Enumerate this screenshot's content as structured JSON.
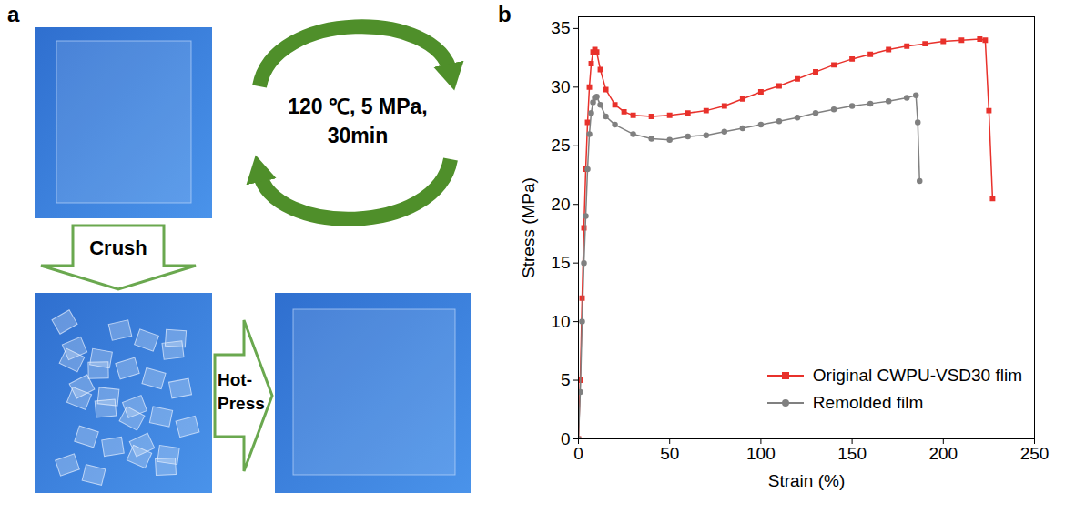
{
  "diagram": {
    "panel_labels": [
      "a",
      "b"
    ],
    "cycle_text": [
      "120 ℃, 5 MPa,",
      "30min"
    ],
    "steps": [
      "Crush",
      "Hot-Press"
    ]
  },
  "chart_data": {
    "type": "line",
    "xlabel": "Strain (%)",
    "ylabel": "Stress (MPa)",
    "xlim": [
      0,
      250
    ],
    "xticks": [
      0,
      50,
      100,
      150,
      200,
      250
    ],
    "ylim": [
      0,
      36
    ],
    "yticks": [
      0,
      5,
      10,
      15,
      20,
      25,
      30,
      35
    ],
    "grid": false,
    "legend": "lower right",
    "series": [
      {
        "name": "Original CWPU-VSD30 flim",
        "color": "#e8312b",
        "marker": "square",
        "x": [
          0,
          1,
          2,
          3,
          4,
          5,
          6,
          7,
          8,
          9,
          10,
          12,
          15,
          20,
          25,
          30,
          40,
          50,
          60,
          70,
          80,
          90,
          100,
          110,
          120,
          130,
          140,
          150,
          160,
          170,
          180,
          190,
          200,
          210,
          220,
          223,
          225,
          227
        ],
        "values": [
          0,
          5,
          12,
          18,
          23,
          27,
          30,
          32,
          33,
          33.2,
          33,
          31.5,
          29.8,
          28.5,
          27.9,
          27.6,
          27.5,
          27.6,
          27.8,
          28,
          28.4,
          29,
          29.6,
          30.1,
          30.7,
          31.3,
          31.9,
          32.4,
          32.8,
          33.2,
          33.5,
          33.7,
          33.9,
          34,
          34.1,
          34,
          28,
          20.5
        ]
      },
      {
        "name": "Remolded film",
        "color": "#808080",
        "marker": "circle",
        "x": [
          0,
          1,
          2,
          3,
          4,
          5,
          6,
          7,
          8,
          9,
          10,
          12,
          15,
          20,
          30,
          40,
          50,
          60,
          70,
          80,
          90,
          100,
          110,
          120,
          130,
          140,
          150,
          160,
          170,
          180,
          185,
          186,
          187
        ],
        "values": [
          0,
          4,
          10,
          15,
          19,
          23,
          26,
          27.8,
          28.7,
          29.1,
          29.2,
          28.5,
          27.5,
          26.8,
          26,
          25.6,
          25.5,
          25.8,
          25.9,
          26.2,
          26.5,
          26.8,
          27.1,
          27.4,
          27.8,
          28.1,
          28.4,
          28.6,
          28.8,
          29.1,
          29.3,
          27,
          22
        ]
      }
    ]
  }
}
